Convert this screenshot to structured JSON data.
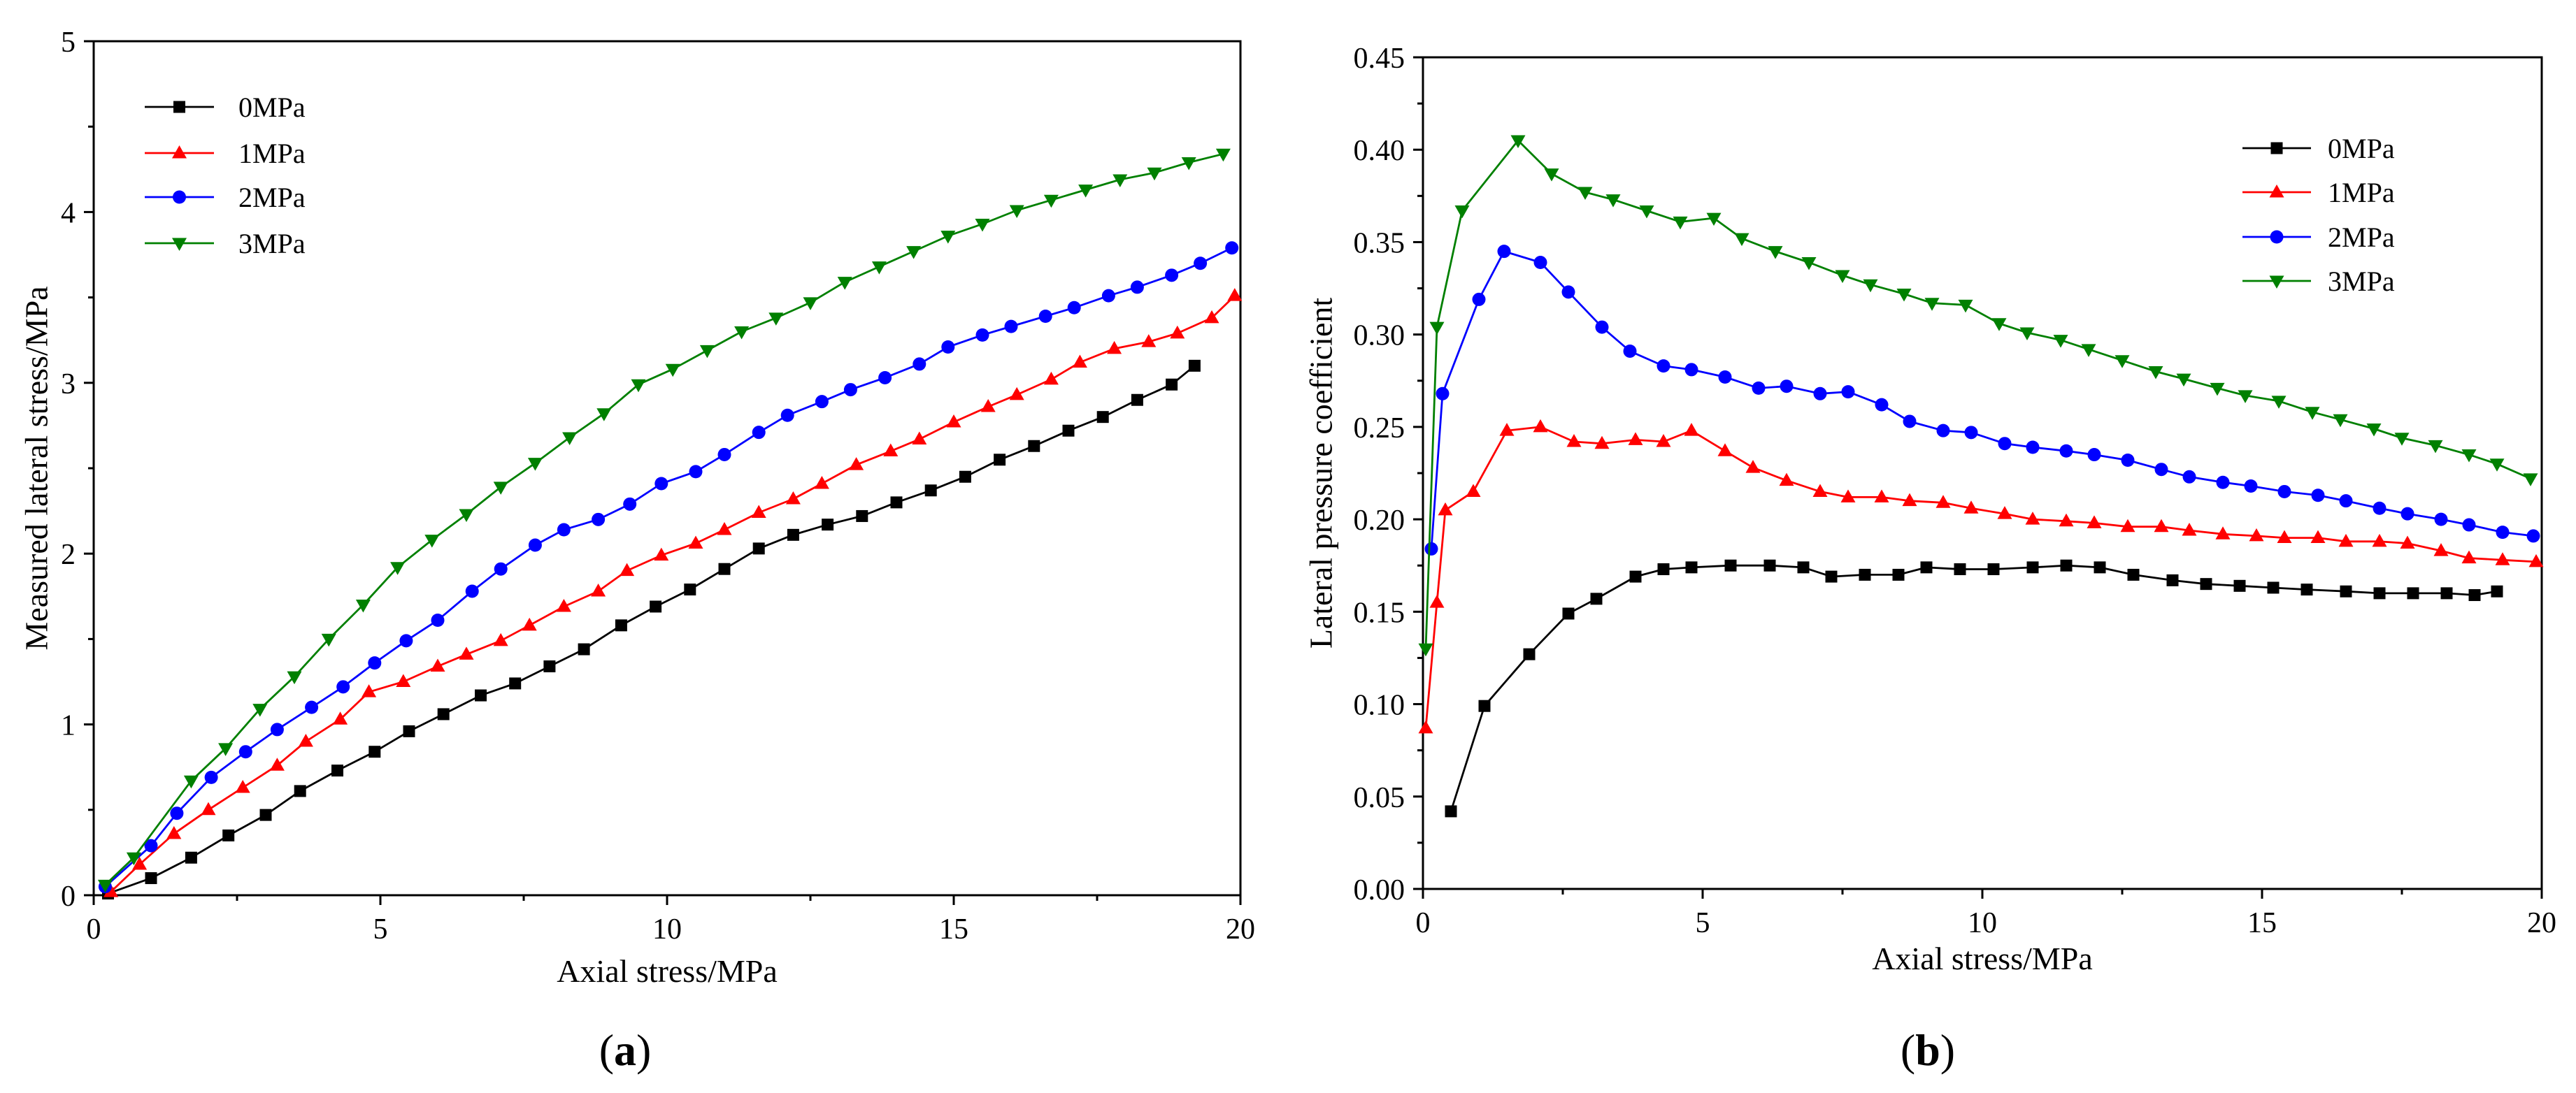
{
  "figure": {
    "panel_labels": [
      "(a)",
      "(b)"
    ]
  },
  "chart_data": [
    {
      "type": "line",
      "title": "",
      "xlabel": "Axial stress/MPa",
      "ylabel": "Measured lateral stress/MPa",
      "xlim": [
        0,
        20
      ],
      "ylim": [
        0,
        5
      ],
      "xticks": [
        "0",
        "5",
        "10",
        "15",
        "20"
      ],
      "yticks": [
        "0",
        "1",
        "2",
        "3",
        "4",
        "5"
      ],
      "grid": false,
      "legend": "top-left",
      "series": [
        {
          "name": "0MPa",
          "color": "#000000",
          "marker": "square",
          "x": [
            0.25,
            1.0,
            1.7,
            2.35,
            3.0,
            3.6,
            4.25,
            4.9,
            5.5,
            6.1,
            6.75,
            7.35,
            7.95,
            8.55,
            9.2,
            9.8,
            10.4,
            11.0,
            11.6,
            12.2,
            12.8,
            13.4,
            14.0,
            14.6,
            15.2,
            15.8,
            16.4,
            17.0,
            17.6,
            18.2,
            18.8,
            19.2
          ],
          "y": [
            0.01,
            0.1,
            0.22,
            0.35,
            0.47,
            0.61,
            0.73,
            0.84,
            0.96,
            1.06,
            1.17,
            1.24,
            1.34,
            1.44,
            1.58,
            1.69,
            1.79,
            1.91,
            2.03,
            2.11,
            2.17,
            2.22,
            2.3,
            2.37,
            2.45,
            2.55,
            2.63,
            2.72,
            2.8,
            2.9,
            2.99,
            3.1
          ]
        },
        {
          "name": "1MPa",
          "color": "#ff0000",
          "marker": "triangle-up",
          "x": [
            0.3,
            0.8,
            1.4,
            2.0,
            2.6,
            3.2,
            3.7,
            4.3,
            4.8,
            5.4,
            6.0,
            6.5,
            7.1,
            7.6,
            8.2,
            8.8,
            9.3,
            9.9,
            10.5,
            11.0,
            11.6,
            12.2,
            12.7,
            13.3,
            13.9,
            14.4,
            15.0,
            15.6,
            16.1,
            16.7,
            17.2,
            17.8,
            18.4,
            18.9,
            19.5,
            19.9
          ],
          "y": [
            0.02,
            0.18,
            0.36,
            0.5,
            0.63,
            0.76,
            0.9,
            1.03,
            1.19,
            1.25,
            1.34,
            1.41,
            1.49,
            1.58,
            1.69,
            1.78,
            1.9,
            1.99,
            2.06,
            2.14,
            2.24,
            2.32,
            2.41,
            2.52,
            2.6,
            2.67,
            2.77,
            2.86,
            2.93,
            3.02,
            3.12,
            3.2,
            3.24,
            3.29,
            3.38,
            3.51
          ]
        },
        {
          "name": "2MPa",
          "color": "#0000ff",
          "marker": "circle",
          "x": [
            0.2,
            1.0,
            1.45,
            2.05,
            2.65,
            3.2,
            3.8,
            4.35,
            4.9,
            5.45,
            6.0,
            6.6,
            7.1,
            7.7,
            8.2,
            8.8,
            9.35,
            9.9,
            10.5,
            11.0,
            11.6,
            12.1,
            12.7,
            13.2,
            13.8,
            14.4,
            14.9,
            15.5,
            16.0,
            16.6,
            17.1,
            17.7,
            18.2,
            18.8,
            19.3,
            19.85
          ],
          "y": [
            0.05,
            0.29,
            0.48,
            0.69,
            0.84,
            0.97,
            1.1,
            1.22,
            1.36,
            1.49,
            1.61,
            1.78,
            1.91,
            2.05,
            2.14,
            2.2,
            2.29,
            2.41,
            2.48,
            2.58,
            2.71,
            2.81,
            2.89,
            2.96,
            3.03,
            3.11,
            3.21,
            3.28,
            3.33,
            3.39,
            3.44,
            3.51,
            3.56,
            3.63,
            3.7,
            3.79
          ]
        },
        {
          "name": "3MPa",
          "color": "#008000",
          "marker": "triangle-down",
          "x": [
            0.2,
            0.7,
            1.7,
            2.3,
            2.9,
            3.5,
            4.1,
            4.7,
            5.3,
            5.9,
            6.5,
            7.1,
            7.7,
            8.3,
            8.9,
            9.5,
            10.1,
            10.7,
            11.3,
            11.9,
            12.5,
            13.1,
            13.7,
            14.3,
            14.9,
            15.5,
            16.1,
            16.7,
            17.3,
            17.9,
            18.5,
            19.1,
            19.7
          ],
          "y": [
            0.06,
            0.22,
            0.67,
            0.86,
            1.09,
            1.28,
            1.5,
            1.7,
            1.92,
            2.08,
            2.23,
            2.39,
            2.53,
            2.68,
            2.82,
            2.99,
            3.08,
            3.19,
            3.3,
            3.38,
            3.47,
            3.59,
            3.68,
            3.77,
            3.86,
            3.93,
            4.01,
            4.07,
            4.13,
            4.19,
            4.23,
            4.29,
            4.34
          ]
        }
      ]
    },
    {
      "type": "line",
      "title": "",
      "xlabel": "Axial stress/MPa",
      "ylabel": "Lateral pressure coefficient",
      "xlim": [
        0,
        20
      ],
      "ylim": [
        0,
        0.45
      ],
      "xticks": [
        "0",
        "5",
        "10",
        "15",
        "20"
      ],
      "yticks": [
        "0.00",
        "0.05",
        "0.10",
        "0.15",
        "0.20",
        "0.25",
        "0.30",
        "0.35",
        "0.40",
        "0.45"
      ],
      "grid": false,
      "legend": "top-right",
      "series": [
        {
          "name": "0MPa",
          "color": "#000000",
          "marker": "square",
          "x": [
            0.5,
            1.1,
            1.9,
            2.6,
            3.1,
            3.8,
            4.3,
            4.8,
            5.5,
            6.2,
            6.8,
            7.3,
            7.9,
            8.5,
            9.0,
            9.6,
            10.2,
            10.9,
            11.5,
            12.1,
            12.7,
            13.4,
            14.0,
            14.6,
            15.2,
            15.8,
            16.5,
            17.1,
            17.7,
            18.3,
            18.8,
            19.2
          ],
          "y": [
            0.042,
            0.099,
            0.127,
            0.149,
            0.157,
            0.169,
            0.173,
            0.174,
            0.175,
            0.175,
            0.174,
            0.169,
            0.17,
            0.17,
            0.174,
            0.173,
            0.173,
            0.174,
            0.175,
            0.174,
            0.17,
            0.167,
            0.165,
            0.164,
            0.163,
            0.162,
            0.161,
            0.16,
            0.16,
            0.16,
            0.159,
            0.161
          ]
        },
        {
          "name": "1MPa",
          "color": "#ff0000",
          "marker": "triangle-up",
          "x": [
            0.05,
            0.25,
            0.4,
            0.9,
            1.5,
            2.1,
            2.7,
            3.2,
            3.8,
            4.3,
            4.8,
            5.4,
            5.9,
            6.5,
            7.1,
            7.6,
            8.2,
            8.7,
            9.3,
            9.8,
            10.4,
            10.9,
            11.5,
            12.0,
            12.6,
            13.2,
            13.7,
            14.3,
            14.9,
            15.4,
            16.0,
            16.5,
            17.1,
            17.6,
            18.2,
            18.7,
            19.3,
            19.9
          ],
          "y": [
            0.087,
            0.155,
            0.205,
            0.215,
            0.248,
            0.25,
            0.242,
            0.241,
            0.243,
            0.242,
            0.248,
            0.237,
            0.228,
            0.221,
            0.215,
            0.212,
            0.212,
            0.21,
            0.209,
            0.206,
            0.203,
            0.2,
            0.199,
            0.198,
            0.196,
            0.196,
            0.194,
            0.192,
            0.191,
            0.19,
            0.19,
            0.188,
            0.188,
            0.187,
            0.183,
            0.179,
            0.178,
            0.177
          ]
        },
        {
          "name": "2MPa",
          "color": "#0000ff",
          "marker": "circle",
          "x": [
            0.15,
            0.35,
            1.0,
            1.45,
            2.1,
            2.6,
            3.2,
            3.7,
            4.3,
            4.8,
            5.4,
            6.0,
            6.5,
            7.1,
            7.6,
            8.2,
            8.7,
            9.3,
            9.8,
            10.4,
            10.9,
            11.5,
            12.0,
            12.6,
            13.2,
            13.7,
            14.3,
            14.8,
            15.4,
            16.0,
            16.5,
            17.1,
            17.6,
            18.2,
            18.7,
            19.3,
            19.85
          ],
          "y": [
            0.184,
            0.268,
            0.319,
            0.345,
            0.339,
            0.323,
            0.304,
            0.291,
            0.283,
            0.281,
            0.277,
            0.271,
            0.272,
            0.268,
            0.269,
            0.262,
            0.253,
            0.248,
            0.247,
            0.241,
            0.239,
            0.237,
            0.235,
            0.232,
            0.227,
            0.223,
            0.22,
            0.218,
            0.215,
            0.213,
            0.21,
            0.206,
            0.203,
            0.2,
            0.197,
            0.193,
            0.191
          ]
        },
        {
          "name": "3MPa",
          "color": "#008000",
          "marker": "triangle-down",
          "x": [
            0.05,
            0.25,
            0.7,
            1.7,
            2.3,
            2.9,
            3.4,
            4.0,
            4.6,
            5.2,
            5.7,
            6.3,
            6.9,
            7.5,
            8.0,
            8.6,
            9.1,
            9.7,
            10.3,
            10.8,
            11.4,
            11.9,
            12.5,
            13.1,
            13.6,
            14.2,
            14.7,
            15.3,
            15.9,
            16.4,
            17.0,
            17.5,
            18.1,
            18.7,
            19.2,
            19.8
          ],
          "y": [
            0.13,
            0.304,
            0.367,
            0.405,
            0.387,
            0.377,
            0.373,
            0.367,
            0.361,
            0.363,
            0.352,
            0.345,
            0.339,
            0.332,
            0.327,
            0.322,
            0.317,
            0.316,
            0.306,
            0.301,
            0.297,
            0.292,
            0.286,
            0.28,
            0.276,
            0.271,
            0.267,
            0.264,
            0.258,
            0.254,
            0.249,
            0.244,
            0.24,
            0.235,
            0.23,
            0.222
          ]
        }
      ]
    }
  ]
}
